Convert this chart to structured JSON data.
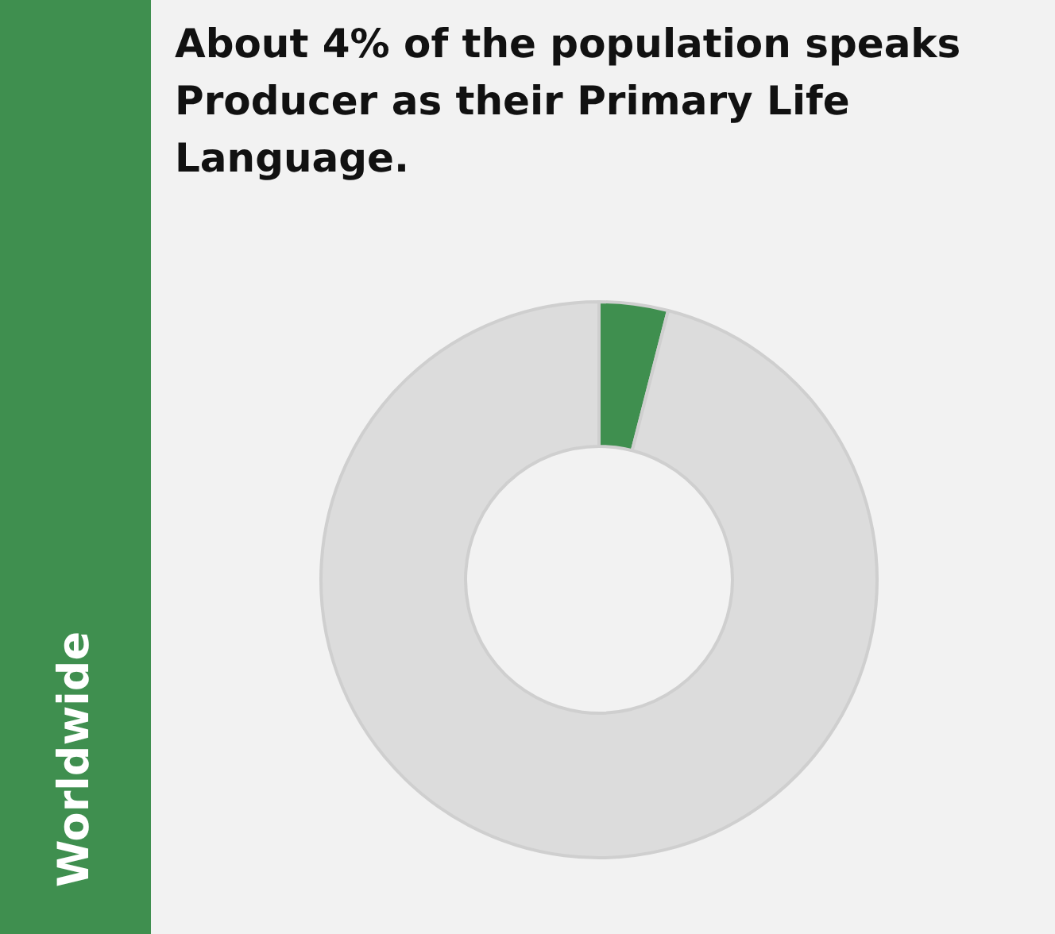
{
  "chart_data": {
    "type": "donut",
    "title": "About 4% of the population speaks Producer as their Primary Life Language.",
    "subtitle": "Worldwide",
    "categories": [
      null,
      null
    ],
    "values": [
      4,
      96
    ],
    "colors": [
      "#3f8f4f",
      "#dcdcdc"
    ],
    "legend": false
  }
}
